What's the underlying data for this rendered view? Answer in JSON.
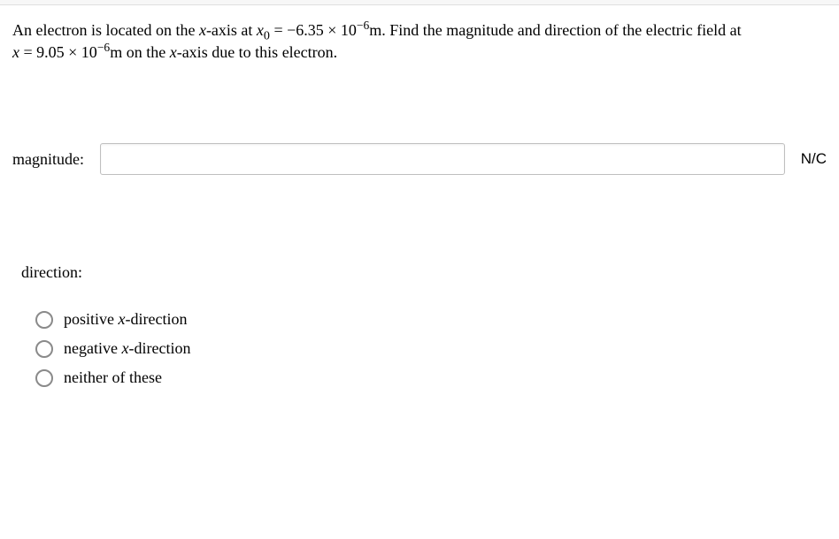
{
  "question": {
    "line1_pre": "An electron is located on the ",
    "xaxis": "x",
    "line1_mid": "-axis at ",
    "x0var": "x",
    "x0sub": "0",
    "eq1": " = −6.35 × 10",
    "exp1": "−6",
    "unit_m1": "m",
    "line1_post": ". Find the magnitude and direction of the electric field at",
    "line2_pre_var": "x",
    "eq2": " = 9.05 × 10",
    "exp2": "−6",
    "unit_m2": "m",
    "line2_mid": " on the ",
    "line2_axis": "x",
    "line2_post": "-axis due to this electron."
  },
  "magnitude": {
    "label": "magnitude:",
    "value": "",
    "unit": "N/C"
  },
  "direction": {
    "label": "direction:",
    "options": [
      {
        "pre": "positive ",
        "ital": "x",
        "post": "-direction"
      },
      {
        "pre": "negative ",
        "ital": "x",
        "post": "-direction"
      },
      {
        "pre": "neither of these",
        "ital": "",
        "post": ""
      }
    ]
  }
}
